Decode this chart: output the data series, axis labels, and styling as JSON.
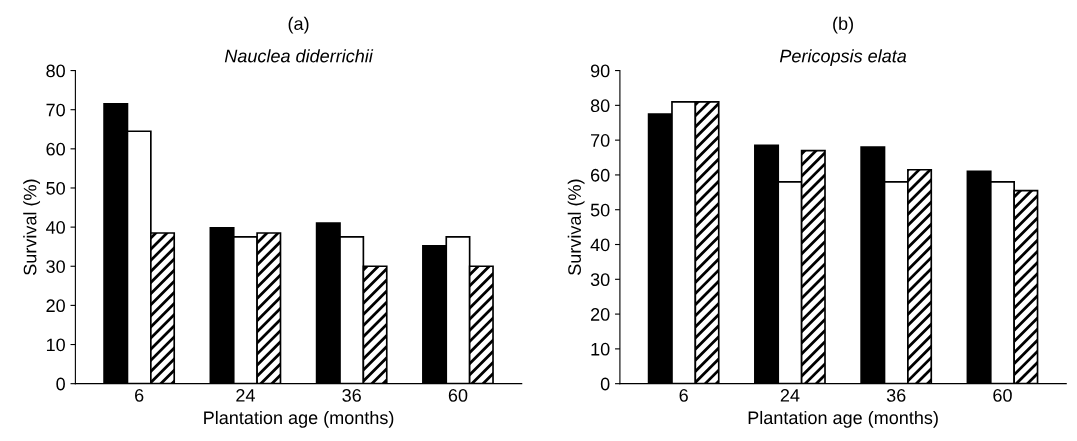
{
  "chart_data": [
    {
      "type": "bar",
      "title": "(a)",
      "subtitle": "Nauclea diderrichii",
      "xlabel": "Plantation age (months)",
      "ylabel": "Survival (%)",
      "categories": [
        "6",
        "24",
        "36",
        "60"
      ],
      "series": [
        {
          "color": "#000000",
          "values": [
            71.5,
            39.8,
            41,
            35.2
          ]
        },
        {
          "color": "#ffffff",
          "values": [
            64.5,
            37.5,
            37.5,
            37.5
          ]
        },
        {
          "color": "#000000",
          "values": [
            38.5,
            38.5,
            30,
            30
          ]
        }
      ],
      "ylim": [
        0,
        80
      ],
      "yticks": [
        0,
        10,
        20,
        30,
        40,
        50,
        60,
        70,
        80
      ],
      "grid": false
    },
    {
      "type": "bar",
      "title": "(b)",
      "subtitle": "Pericopsis elata",
      "xlabel": "Plantation age (months)",
      "ylabel": "Survival (%)",
      "categories": [
        "6",
        "24",
        "36",
        "60"
      ],
      "series": [
        {
          "color": "#000000",
          "values": [
            77.5,
            68.5,
            68,
            61
          ]
        },
        {
          "color": "#ffffff",
          "values": [
            81,
            58,
            58,
            58
          ]
        },
        {
          "color": "#000000",
          "values": [
            81,
            67,
            61.5,
            55.5
          ]
        }
      ],
      "ylim": [
        0,
        90
      ],
      "yticks": [
        0,
        10,
        20,
        30,
        40,
        50,
        60,
        70,
        80,
        90
      ],
      "grid": false
    }
  ]
}
